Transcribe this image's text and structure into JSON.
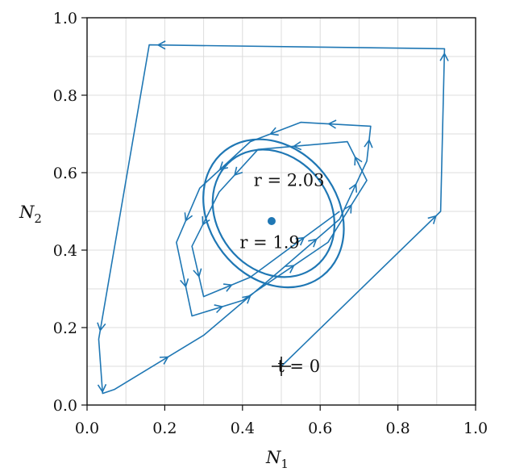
{
  "chart_data": {
    "type": "line",
    "xlabel": "N",
    "xlabel_sub": "1",
    "ylabel": "N",
    "ylabel_sub": "2",
    "xlim": [
      0.0,
      1.0
    ],
    "ylim": [
      0.0,
      1.0
    ],
    "xticks": [
      0.0,
      0.2,
      0.4,
      0.6,
      0.8,
      1.0
    ],
    "yticks": [
      0.0,
      0.2,
      0.4,
      0.6,
      0.8,
      1.0
    ],
    "xtick_labels": [
      "0.0",
      "0.2",
      "0.4",
      "0.6",
      "0.8",
      "1.0"
    ],
    "ytick_labels": [
      "0.0",
      "0.2",
      "0.4",
      "0.6",
      "0.8",
      "1.0"
    ],
    "grid": true,
    "series_color": "#1f77b4",
    "trajectory": {
      "x": [
        0.5,
        0.91,
        0.92,
        0.16,
        0.03,
        0.04,
        0.07,
        0.3,
        0.5,
        0.65,
        0.72,
        0.73,
        0.55,
        0.42,
        0.29,
        0.23,
        0.27,
        0.4,
        0.62,
        0.72,
        0.67,
        0.44,
        0.34,
        0.27,
        0.3,
        0.42,
        0.65
      ],
      "y": [
        0.1,
        0.5,
        0.92,
        0.93,
        0.17,
        0.03,
        0.04,
        0.18,
        0.35,
        0.48,
        0.63,
        0.72,
        0.73,
        0.68,
        0.56,
        0.42,
        0.23,
        0.27,
        0.42,
        0.58,
        0.68,
        0.66,
        0.55,
        0.41,
        0.28,
        0.33,
        0.5
      ]
    },
    "limit_cycle_inner": {
      "label": "r = 1.9",
      "cx": 0.48,
      "cy": 0.495,
      "rx": 0.145,
      "ry": 0.175,
      "tilt_deg": 38
    },
    "limit_cycle_outer": {
      "label": "r = 2.03",
      "cx": 0.48,
      "cy": 0.495,
      "rx": 0.165,
      "ry": 0.205,
      "tilt_deg": 38
    },
    "fixed_point": {
      "x": 0.475,
      "y": 0.475
    },
    "start_point": {
      "x": 0.5,
      "y": 0.1,
      "label": "t = 0"
    },
    "annotations": [
      {
        "text": "r = 2.03",
        "x": 0.52,
        "y": 0.58
      },
      {
        "text": "r = 1.9",
        "x": 0.47,
        "y": 0.42
      },
      {
        "text": "t = 0",
        "x": 0.545,
        "y": 0.1
      }
    ]
  }
}
